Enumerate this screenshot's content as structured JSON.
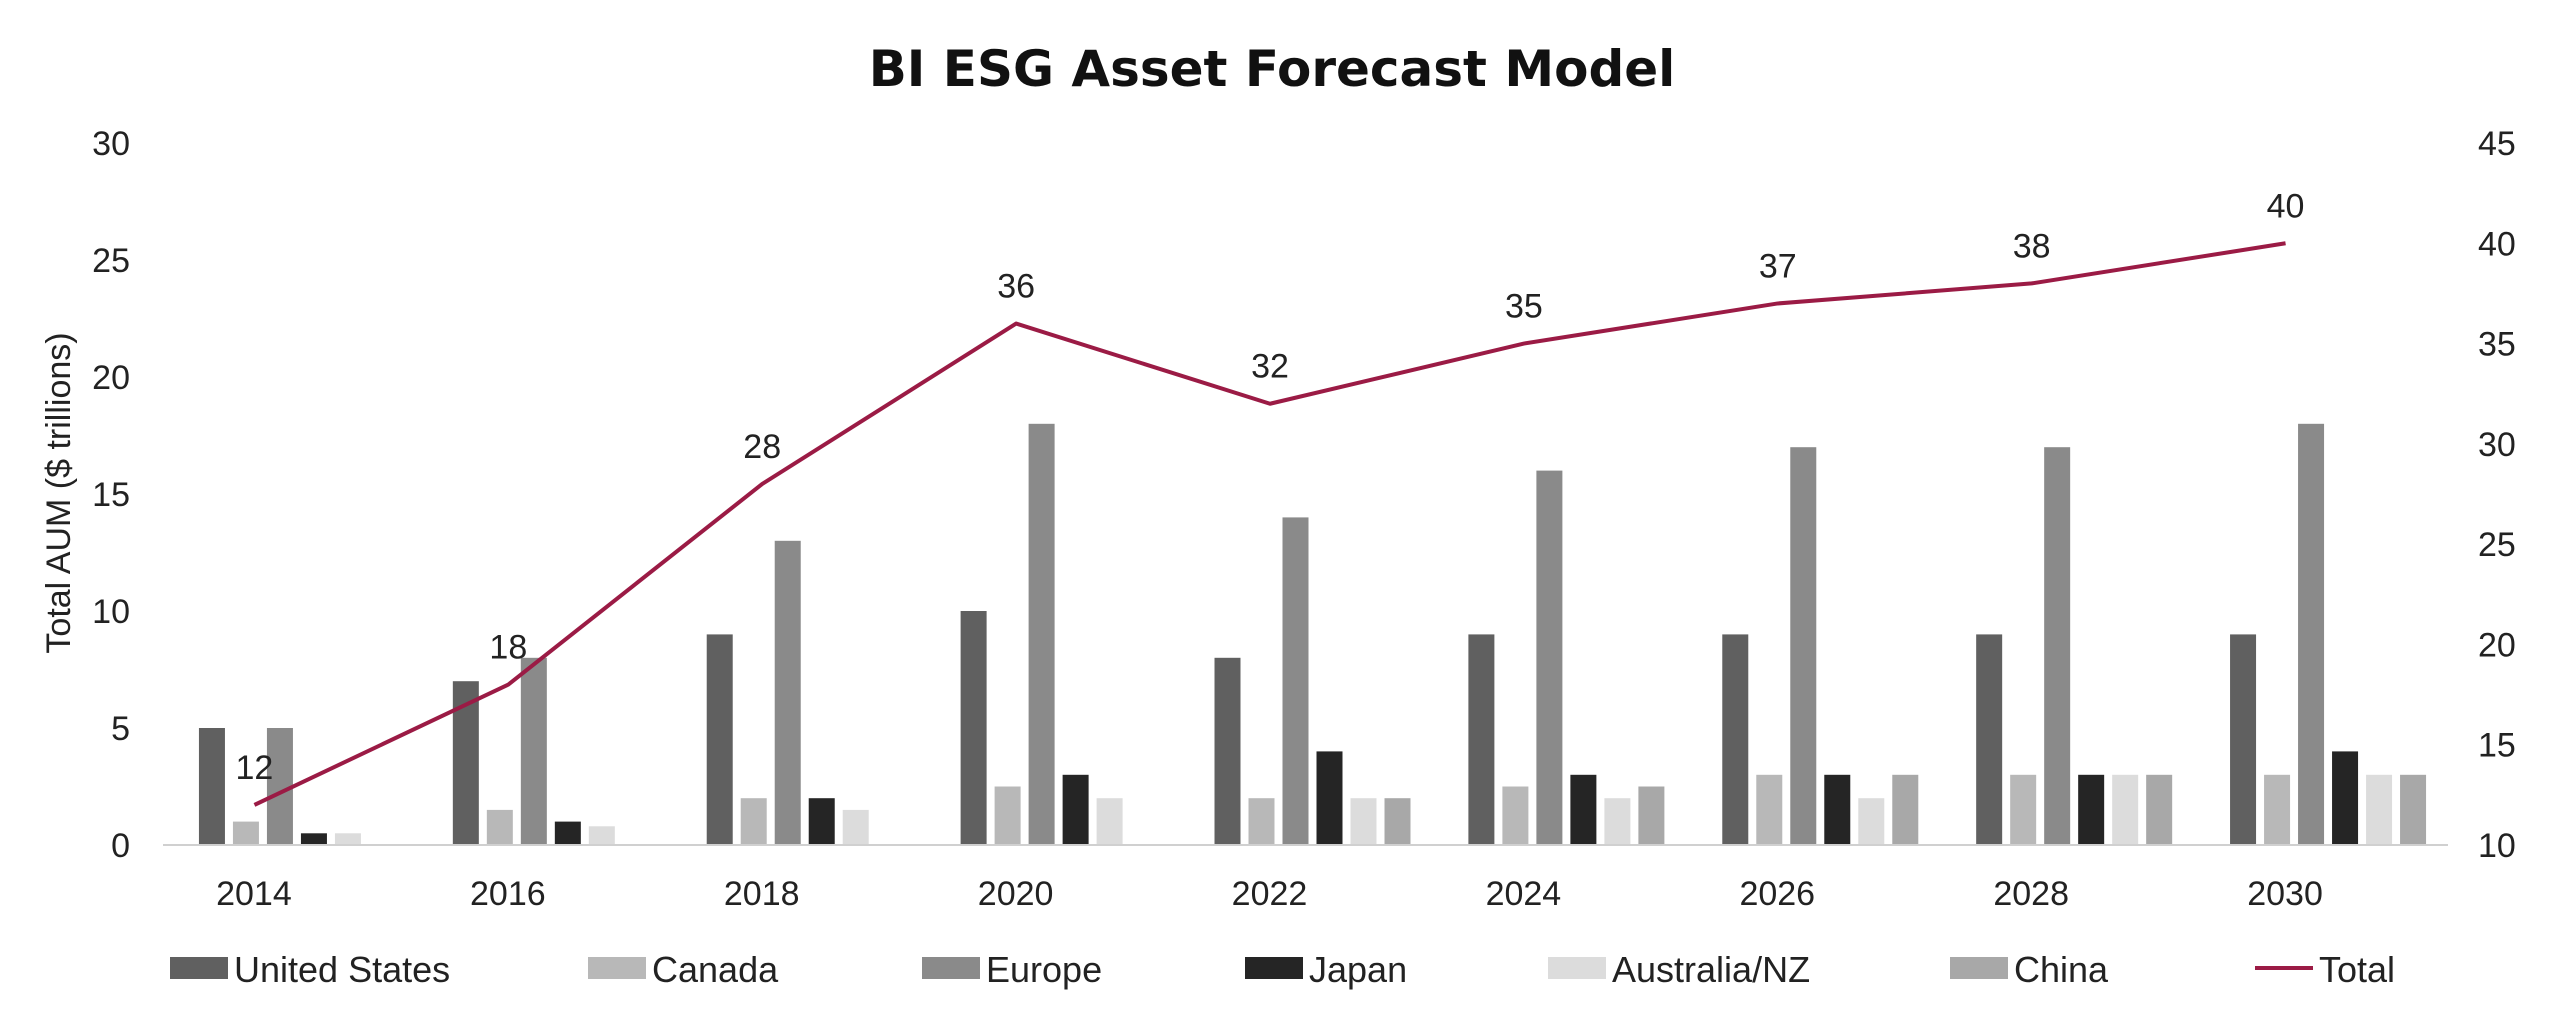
{
  "chart_data": {
    "type": "bar",
    "title": "BI ESG Asset Forecast Model",
    "ylabel": "Total AUM ($ trillions)",
    "ylim": [
      0,
      30
    ],
    "y_ticks": [
      0,
      5,
      10,
      15,
      20,
      25,
      30
    ],
    "y2lim": [
      10,
      45
    ],
    "y2_ticks": [
      10,
      15,
      20,
      25,
      30,
      35,
      40,
      45
    ],
    "categories": [
      "2014",
      "2016",
      "2018",
      "2020",
      "2022",
      "2024",
      "2026",
      "2028",
      "2030"
    ],
    "series": [
      {
        "name": "United States",
        "color": "#606060",
        "values": [
          5,
          7,
          9,
          10,
          8,
          9,
          9,
          9,
          9
        ]
      },
      {
        "name": "Canada",
        "color": "#b8b8b8",
        "values": [
          1,
          1.5,
          2,
          2.5,
          2,
          2.5,
          3,
          3,
          3
        ]
      },
      {
        "name": "Europe",
        "color": "#8a8a8a",
        "values": [
          5,
          8,
          13,
          18,
          14,
          16,
          17,
          17,
          18
        ]
      },
      {
        "name": "Japan",
        "color": "#252525",
        "values": [
          0.5,
          1,
          2,
          3,
          4,
          3,
          3,
          3,
          4
        ]
      },
      {
        "name": "Australia/NZ",
        "color": "#dcdcdc",
        "values": [
          0.5,
          0.8,
          1.5,
          2,
          2,
          2,
          2,
          3,
          3
        ]
      },
      {
        "name": "China",
        "color": "#a8a8a8",
        "values": [
          null,
          null,
          null,
          null,
          2,
          2.5,
          3,
          3,
          3
        ]
      }
    ],
    "line": {
      "name": "Total",
      "color": "#9b1b45",
      "axis": "secondary",
      "values": [
        12,
        18,
        28,
        36,
        32,
        35,
        37,
        38,
        40
      ]
    },
    "legend_position": "bottom"
  }
}
